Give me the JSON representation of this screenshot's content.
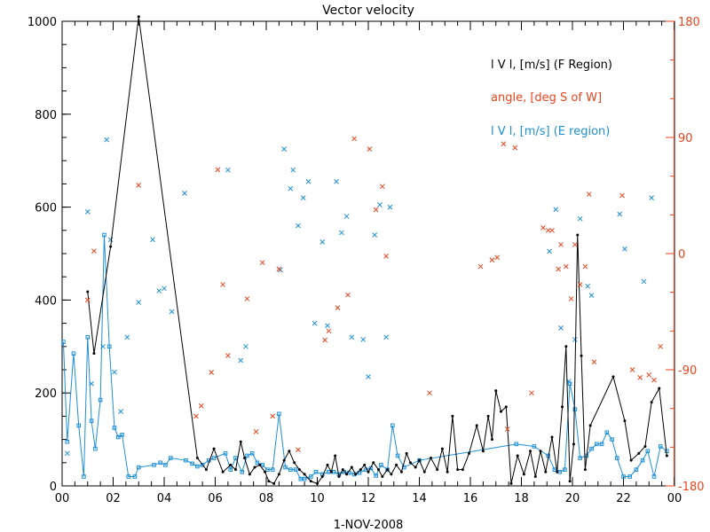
{
  "chart_data": {
    "type": "line",
    "title": "Vector velocity",
    "xlabel": "1-NOV-2008",
    "x_ticks": [
      "00",
      "02",
      "04",
      "06",
      "08",
      "10",
      "12",
      "14",
      "16",
      "18",
      "20",
      "22",
      "00"
    ],
    "xlim": [
      0,
      24
    ],
    "y_left_ticks": [
      "0",
      "200",
      "400",
      "600",
      "800",
      "1000"
    ],
    "ylim_left": [
      0,
      1000
    ],
    "y_right_ticks": [
      "-180",
      "-90",
      "0",
      "90",
      "180"
    ],
    "ylim_right": [
      -180,
      180
    ],
    "legend": {
      "placement": "top-right",
      "f_label": "l V l, [m/s] (F Region)",
      "angle_label": "angle, [deg S of W]",
      "e_label": "l V l, [m/s] (E region)"
    },
    "colors": {
      "f": "#000000",
      "angle": "#e8451e",
      "e": "#1e8fd6",
      "right_axis": "#e8451e"
    },
    "series": [
      {
        "name": "l V l, [m/s] (F Region)",
        "color": "#000000",
        "x": [
          1.0,
          1.25,
          1.9,
          3.0,
          5.3,
          5.65,
          5.95,
          6.3,
          6.6,
          6.8,
          7.0,
          7.15,
          7.35,
          7.55,
          7.75,
          7.95,
          8.1,
          8.3,
          8.5,
          8.7,
          8.9,
          9.1,
          9.3,
          9.5,
          9.75,
          10.0,
          10.2,
          10.4,
          10.55,
          10.7,
          10.85,
          11.0,
          11.15,
          11.35,
          11.5,
          11.7,
          11.85,
          12.0,
          12.2,
          12.4,
          12.55,
          12.75,
          12.9,
          13.1,
          13.3,
          13.5,
          13.65,
          13.85,
          14.0,
          14.2,
          14.45,
          14.7,
          14.9,
          15.1,
          15.3,
          15.5,
          15.7,
          15.95,
          16.25,
          16.5,
          16.7,
          16.85,
          17.0,
          17.2,
          17.4,
          17.6,
          17.85,
          18.1,
          18.35,
          18.55,
          18.75,
          18.95,
          19.2,
          19.4,
          19.6,
          19.75,
          19.9,
          20.05,
          20.2,
          20.35,
          20.5,
          20.7,
          21.6,
          22.05,
          22.3,
          22.6,
          22.85,
          23.1,
          23.4,
          23.7
        ],
        "values": [
          418,
          285,
          515,
          1010,
          60,
          35,
          80,
          30,
          45,
          35,
          95,
          60,
          25,
          40,
          45,
          30,
          10,
          5,
          25,
          55,
          75,
          50,
          35,
          25,
          10,
          5,
          20,
          45,
          30,
          65,
          20,
          35,
          25,
          40,
          25,
          35,
          45,
          30,
          50,
          35,
          20,
          35,
          25,
          45,
          30,
          70,
          50,
          40,
          55,
          30,
          60,
          35,
          80,
          30,
          150,
          35,
          35,
          70,
          130,
          75,
          150,
          100,
          205,
          160,
          170,
          5,
          65,
          25,
          75,
          20,
          75,
          30,
          105,
          30,
          170,
          300,
          10,
          90,
          540,
          280,
          35,
          130,
          235,
          140,
          55,
          70,
          85,
          180,
          210,
          65
        ]
      },
      {
        "name": "angle, [deg S of W]",
        "color": "#e8451e",
        "x": [
          1.0,
          1.25,
          3.0,
          5.25,
          5.45,
          5.85,
          6.1,
          6.3,
          6.5,
          7.25,
          7.6,
          7.85,
          8.25,
          8.5,
          9.25,
          10.3,
          10.45,
          10.8,
          11.2,
          11.45,
          12.05,
          12.3,
          12.55,
          12.7,
          14.4,
          16.4,
          16.85,
          17.05,
          17.3,
          17.45,
          17.75,
          18.4,
          18.85,
          19.05,
          19.2,
          19.45,
          19.55,
          19.75,
          19.95,
          20.1,
          20.3,
          20.5,
          20.65,
          20.85,
          21.95,
          22.35,
          22.65,
          23.0,
          23.2,
          23.45
        ],
        "values": [
          -36,
          2,
          53,
          -126,
          -118,
          -92,
          65,
          -24,
          -79,
          -35,
          -138,
          -7,
          -126,
          -12,
          -152,
          -67,
          -60,
          -42,
          -32,
          89,
          81,
          34,
          52,
          -2,
          -108,
          -10,
          -5,
          -3,
          85,
          -136,
          82,
          -108,
          20,
          18,
          18,
          -12,
          7,
          -10,
          -35,
          7,
          -24,
          -10,
          46,
          -84,
          45,
          -90,
          -96,
          -94,
          -98,
          -72
        ]
      },
      {
        "name": "l V l, [m/s] (E region)",
        "color": "#1e8fd6",
        "x": [
          0.05,
          0.2,
          0.45,
          0.65,
          0.85,
          1.0,
          1.15,
          1.3,
          1.5,
          1.65,
          1.85,
          2.05,
          2.2,
          2.35,
          2.6,
          2.85,
          3.0,
          3.6,
          3.85,
          4.05,
          4.25,
          4.85,
          5.1,
          5.3,
          5.5,
          5.75,
          5.95,
          6.4,
          6.6,
          6.8,
          7.05,
          7.25,
          7.45,
          7.65,
          7.85,
          8.05,
          8.25,
          8.5,
          8.75,
          8.95,
          9.15,
          9.35,
          9.5,
          9.75,
          9.95,
          10.2,
          10.45,
          10.65,
          10.85,
          11.05,
          11.25,
          11.45,
          11.65,
          11.9,
          12.1,
          12.3,
          12.5,
          12.75,
          12.95,
          13.15,
          13.4,
          14.0,
          17.8,
          18.5,
          19.05,
          19.3,
          19.5,
          19.7,
          19.9,
          20.1,
          20.3,
          20.55,
          20.75,
          20.95,
          21.15,
          21.35,
          21.55,
          21.75,
          22.0,
          22.25,
          22.5,
          22.75,
          22.95,
          23.2,
          23.45,
          23.7
        ],
        "values": [
          310,
          95,
          285,
          130,
          20,
          320,
          140,
          80,
          185,
          540,
          300,
          125,
          105,
          110,
          20,
          20,
          40,
          45,
          50,
          45,
          60,
          55,
          48,
          42,
          45,
          55,
          60,
          70,
          35,
          60,
          30,
          65,
          70,
          50,
          45,
          35,
          35,
          155,
          40,
          35,
          35,
          15,
          15,
          20,
          30,
          25,
          30,
          30,
          25,
          30,
          28,
          25,
          28,
          35,
          38,
          22,
          45,
          35,
          130,
          65,
          40,
          55,
          90,
          85,
          65,
          35,
          30,
          35,
          220,
          165,
          60,
          65,
          80,
          90,
          90,
          115,
          100,
          60,
          20,
          20,
          35,
          55,
          75,
          20,
          85,
          75
        ],
        "extra_markers": {
          "x": [
            0.2,
            1.0,
            1.15,
            1.6,
            1.75,
            1.9,
            2.05,
            2.3,
            2.55,
            3.0,
            3.55,
            3.8,
            4.0,
            4.3,
            4.8,
            6.5,
            7.0,
            7.2,
            8.55,
            8.7,
            8.95,
            9.05,
            9.25,
            9.45,
            9.65,
            9.9,
            10.2,
            10.4,
            10.75,
            10.95,
            11.15,
            11.35,
            11.8,
            12.0,
            12.25,
            12.45,
            12.7,
            12.85,
            19.1,
            19.35,
            19.55,
            19.85,
            20.1,
            20.3,
            20.6,
            20.75,
            21.85,
            22.05,
            22.8,
            23.1
          ],
          "values": [
            70,
            590,
            220,
            300,
            745,
            530,
            245,
            160,
            320,
            395,
            530,
            420,
            425,
            375,
            630,
            680,
            270,
            300,
            465,
            725,
            640,
            680,
            560,
            620,
            655,
            350,
            525,
            345,
            655,
            545,
            580,
            320,
            315,
            235,
            540,
            605,
            320,
            600,
            505,
            595,
            340,
            225,
            315,
            575,
            430,
            410,
            585,
            510,
            440,
            620
          ]
        }
      }
    ]
  }
}
